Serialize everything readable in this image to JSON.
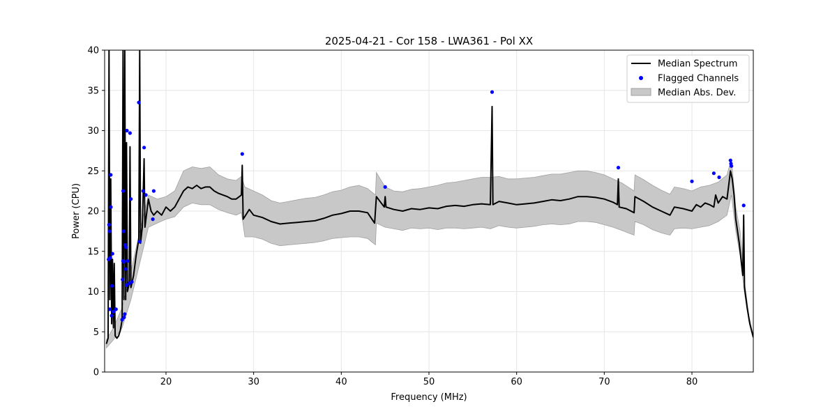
{
  "chart_data": {
    "type": "line",
    "title": "2025-04-21 - Cor 158 - LWA361 - Pol XX",
    "xlabel": "Frequency (MHz)",
    "ylabel": "Power (CPU)",
    "xlim": [
      13.0,
      87.0
    ],
    "ylim": [
      0,
      40
    ],
    "xticks": [
      20,
      30,
      40,
      50,
      60,
      70,
      80
    ],
    "yticks": [
      0,
      5,
      10,
      15,
      20,
      25,
      30,
      35,
      40
    ],
    "grid": true,
    "legend_position": "top-right",
    "legend": {
      "median": "Median Spectrum",
      "flagged": "Flagged Channels",
      "mad": "Median Abs. Dev."
    },
    "colors": {
      "median": "#000000",
      "flagged": "#0000ff",
      "mad_fill": "#c8c8c8",
      "mad_edge": "#a0a0a0"
    },
    "series": [
      {
        "name": "Median Spectrum",
        "points": [
          [
            13.2,
            3.5
          ],
          [
            13.4,
            4.2
          ],
          [
            13.5,
            40.0
          ],
          [
            13.6,
            9.0
          ],
          [
            13.7,
            24.0
          ],
          [
            13.8,
            6.0
          ],
          [
            13.9,
            14.0
          ],
          [
            14.0,
            5.5
          ],
          [
            14.1,
            13.5
          ],
          [
            14.2,
            4.5
          ],
          [
            14.4,
            4.2
          ],
          [
            14.6,
            4.5
          ],
          [
            14.8,
            5.2
          ],
          [
            15.0,
            6.5
          ],
          [
            15.1,
            40.0
          ],
          [
            15.2,
            9.0
          ],
          [
            15.3,
            40.0
          ],
          [
            15.4,
            9.0
          ],
          [
            15.5,
            28.5
          ],
          [
            15.6,
            10.0
          ],
          [
            15.8,
            11.0
          ],
          [
            15.9,
            28.0
          ],
          [
            16.0,
            10.5
          ],
          [
            16.3,
            12.0
          ],
          [
            16.6,
            14.5
          ],
          [
            16.9,
            16.5
          ],
          [
            17.0,
            40.0
          ],
          [
            17.1,
            16.0
          ],
          [
            17.3,
            18.0
          ],
          [
            17.5,
            26.5
          ],
          [
            17.6,
            18.0
          ],
          [
            18.0,
            21.5
          ],
          [
            18.3,
            20.0
          ],
          [
            18.6,
            19.5
          ],
          [
            19.0,
            20.0
          ],
          [
            19.5,
            19.5
          ],
          [
            20.0,
            20.5
          ],
          [
            20.5,
            20.0
          ],
          [
            21.0,
            20.5
          ],
          [
            21.5,
            21.5
          ],
          [
            22.0,
            22.5
          ],
          [
            22.5,
            23.0
          ],
          [
            23.0,
            22.8
          ],
          [
            23.5,
            23.2
          ],
          [
            24.0,
            22.8
          ],
          [
            24.5,
            23.0
          ],
          [
            25.0,
            23.0
          ],
          [
            25.5,
            22.5
          ],
          [
            26.0,
            22.2
          ],
          [
            26.5,
            22.0
          ],
          [
            27.0,
            21.8
          ],
          [
            27.5,
            21.5
          ],
          [
            28.0,
            21.5
          ],
          [
            28.6,
            22.0
          ],
          [
            28.7,
            25.7
          ],
          [
            28.8,
            19.0
          ],
          [
            29.5,
            20.2
          ],
          [
            30.0,
            19.5
          ],
          [
            31.0,
            19.2
          ],
          [
            32.0,
            18.7
          ],
          [
            33.0,
            18.4
          ],
          [
            34.0,
            18.5
          ],
          [
            35.0,
            18.6
          ],
          [
            36.0,
            18.7
          ],
          [
            37.0,
            18.8
          ],
          [
            38.0,
            19.1
          ],
          [
            39.0,
            19.5
          ],
          [
            40.0,
            19.7
          ],
          [
            41.0,
            20.0
          ],
          [
            42.0,
            20.0
          ],
          [
            43.0,
            19.8
          ],
          [
            43.8,
            18.5
          ],
          [
            44.0,
            21.8
          ],
          [
            44.9,
            20.5
          ],
          [
            45.0,
            21.8
          ],
          [
            45.1,
            20.5
          ],
          [
            46.0,
            20.2
          ],
          [
            47.0,
            20.0
          ],
          [
            48.0,
            20.3
          ],
          [
            49.0,
            20.2
          ],
          [
            50.0,
            20.4
          ],
          [
            51.0,
            20.3
          ],
          [
            52.0,
            20.6
          ],
          [
            53.0,
            20.7
          ],
          [
            54.0,
            20.6
          ],
          [
            55.0,
            20.8
          ],
          [
            56.0,
            20.9
          ],
          [
            57.0,
            20.8
          ],
          [
            57.2,
            33.0
          ],
          [
            57.3,
            20.8
          ],
          [
            58.0,
            21.2
          ],
          [
            59.0,
            21.0
          ],
          [
            60.0,
            20.8
          ],
          [
            61.0,
            20.9
          ],
          [
            62.0,
            21.0
          ],
          [
            63.0,
            21.2
          ],
          [
            64.0,
            21.4
          ],
          [
            65.0,
            21.3
          ],
          [
            66.0,
            21.5
          ],
          [
            67.0,
            21.8
          ],
          [
            68.0,
            21.8
          ],
          [
            69.0,
            21.7
          ],
          [
            70.0,
            21.5
          ],
          [
            71.0,
            21.1
          ],
          [
            71.5,
            20.8
          ],
          [
            71.6,
            24.0
          ],
          [
            71.7,
            20.5
          ],
          [
            72.5,
            20.3
          ],
          [
            73.4,
            19.8
          ],
          [
            73.5,
            21.8
          ],
          [
            74.5,
            21.2
          ],
          [
            75.5,
            20.5
          ],
          [
            76.5,
            20.0
          ],
          [
            77.5,
            19.5
          ],
          [
            78.0,
            20.5
          ],
          [
            79.0,
            20.3
          ],
          [
            80.0,
            20.0
          ],
          [
            80.5,
            20.8
          ],
          [
            81.0,
            20.5
          ],
          [
            81.5,
            21.0
          ],
          [
            82.0,
            20.8
          ],
          [
            82.5,
            20.5
          ],
          [
            82.7,
            22.0
          ],
          [
            83.0,
            21.0
          ],
          [
            83.5,
            21.8
          ],
          [
            84.0,
            21.5
          ],
          [
            84.4,
            25.0
          ],
          [
            84.6,
            24.0
          ],
          [
            84.8,
            22.0
          ],
          [
            85.0,
            19.0
          ],
          [
            85.4,
            16.0
          ],
          [
            85.8,
            12.0
          ],
          [
            85.9,
            19.5
          ],
          [
            86.0,
            10.5
          ],
          [
            86.3,
            8.0
          ],
          [
            86.6,
            6.0
          ],
          [
            87.0,
            4.3
          ]
        ]
      },
      {
        "name": "Median Abs. Dev.",
        "band": [
          [
            13.2,
            3.0,
            4.0
          ],
          [
            14.0,
            4.0,
            5.5
          ],
          [
            15.0,
            5.5,
            8.0
          ],
          [
            16.0,
            9.0,
            12.5
          ],
          [
            17.0,
            13.5,
            17.5
          ],
          [
            18.0,
            18.0,
            22.0
          ],
          [
            19.0,
            18.5,
            21.5
          ],
          [
            20.0,
            19.0,
            21.8
          ],
          [
            21.0,
            19.3,
            22.5
          ],
          [
            22.0,
            20.5,
            25.0
          ],
          [
            23.0,
            21.0,
            25.5
          ],
          [
            24.0,
            20.8,
            25.3
          ],
          [
            25.0,
            20.8,
            25.5
          ],
          [
            26.0,
            20.2,
            24.5
          ],
          [
            27.0,
            19.8,
            24.0
          ],
          [
            28.0,
            19.5,
            23.8
          ],
          [
            28.6,
            19.8,
            24.3
          ],
          [
            29.0,
            16.8,
            23.0
          ],
          [
            30.0,
            16.8,
            22.5
          ],
          [
            31.0,
            16.5,
            22.0
          ],
          [
            32.0,
            16.0,
            21.3
          ],
          [
            33.0,
            15.7,
            21.0
          ],
          [
            34.0,
            15.8,
            21.2
          ],
          [
            35.0,
            15.9,
            21.4
          ],
          [
            36.0,
            16.0,
            21.6
          ],
          [
            37.0,
            16.1,
            21.7
          ],
          [
            38.0,
            16.3,
            22.0
          ],
          [
            39.0,
            16.6,
            22.4
          ],
          [
            40.0,
            16.7,
            22.6
          ],
          [
            41.0,
            16.8,
            23.0
          ],
          [
            42.0,
            16.8,
            23.2
          ],
          [
            43.0,
            16.6,
            22.8
          ],
          [
            43.9,
            15.8,
            22.0
          ],
          [
            44.0,
            18.5,
            24.8
          ],
          [
            45.0,
            18.0,
            23.0
          ],
          [
            46.0,
            17.8,
            22.5
          ],
          [
            47.0,
            17.6,
            22.4
          ],
          [
            48.0,
            17.9,
            22.7
          ],
          [
            49.0,
            17.8,
            22.8
          ],
          [
            50.0,
            17.9,
            23.0
          ],
          [
            51.0,
            17.7,
            23.2
          ],
          [
            52.0,
            17.9,
            23.5
          ],
          [
            53.0,
            17.9,
            23.6
          ],
          [
            54.0,
            17.8,
            23.8
          ],
          [
            55.0,
            17.9,
            24.0
          ],
          [
            56.0,
            18.0,
            24.2
          ],
          [
            57.0,
            17.8,
            24.2
          ],
          [
            58.0,
            18.2,
            24.3
          ],
          [
            59.0,
            18.0,
            24.0
          ],
          [
            60.0,
            17.9,
            24.0
          ],
          [
            61.0,
            18.0,
            24.1
          ],
          [
            62.0,
            18.1,
            24.2
          ],
          [
            63.0,
            18.3,
            24.4
          ],
          [
            64.0,
            18.4,
            24.6
          ],
          [
            65.0,
            18.3,
            24.6
          ],
          [
            66.0,
            18.4,
            24.8
          ],
          [
            67.0,
            18.7,
            25.0
          ],
          [
            68.0,
            18.7,
            25.0
          ],
          [
            69.0,
            18.6,
            24.8
          ],
          [
            70.0,
            18.3,
            24.5
          ],
          [
            71.0,
            18.0,
            24.0
          ],
          [
            72.0,
            17.6,
            23.5
          ],
          [
            73.4,
            17.0,
            22.5
          ],
          [
            73.5,
            18.7,
            24.5
          ],
          [
            74.5,
            18.3,
            23.9
          ],
          [
            75.5,
            17.7,
            23.2
          ],
          [
            76.5,
            17.3,
            22.6
          ],
          [
            77.5,
            17.0,
            22.1
          ],
          [
            78.0,
            17.8,
            23.0
          ],
          [
            79.0,
            17.9,
            22.8
          ],
          [
            80.0,
            17.8,
            22.5
          ],
          [
            81.0,
            18.0,
            23.0
          ],
          [
            82.0,
            18.2,
            23.2
          ],
          [
            83.0,
            18.7,
            23.6
          ],
          [
            84.0,
            19.5,
            24.5
          ],
          [
            84.5,
            22.0,
            26.5
          ],
          [
            85.0,
            17.5,
            20.5
          ],
          [
            85.5,
            14.5,
            17.5
          ],
          [
            86.0,
            9.8,
            11.2
          ],
          [
            86.5,
            6.3,
            7.0
          ],
          [
            87.0,
            4.2,
            4.5
          ]
        ]
      },
      {
        "name": "Flagged Channels",
        "points": [
          [
            13.45,
            14.0
          ],
          [
            13.5,
            18.3
          ],
          [
            13.55,
            17.5
          ],
          [
            13.6,
            7.8
          ],
          [
            13.65,
            14.2
          ],
          [
            13.7,
            24.5
          ],
          [
            13.72,
            20.5
          ],
          [
            13.8,
            7.0
          ],
          [
            13.85,
            10.7
          ],
          [
            13.9,
            14.7
          ],
          [
            14.0,
            7.5
          ],
          [
            14.3,
            7.8
          ],
          [
            15.0,
            6.5
          ],
          [
            15.05,
            11.5
          ],
          [
            15.1,
            13.8
          ],
          [
            15.12,
            22.5
          ],
          [
            15.15,
            17.5
          ],
          [
            15.2,
            13.7
          ],
          [
            15.22,
            6.8
          ],
          [
            15.3,
            7.2
          ],
          [
            15.35,
            15.8
          ],
          [
            15.4,
            12.8
          ],
          [
            15.45,
            15.5
          ],
          [
            15.5,
            10.8
          ],
          [
            15.55,
            30.0
          ],
          [
            15.6,
            13.8
          ],
          [
            15.8,
            11.0
          ],
          [
            15.9,
            29.7
          ],
          [
            16.0,
            21.5
          ],
          [
            16.1,
            11.2
          ],
          [
            16.9,
            33.5
          ],
          [
            17.0,
            16.2
          ],
          [
            17.4,
            22.5
          ],
          [
            17.5,
            27.9
          ],
          [
            17.7,
            22.0
          ],
          [
            18.5,
            19.0
          ],
          [
            18.6,
            22.5
          ],
          [
            28.7,
            27.1
          ],
          [
            45.0,
            23.0
          ],
          [
            57.2,
            34.8
          ],
          [
            71.6,
            25.4
          ],
          [
            80.0,
            23.7
          ],
          [
            82.5,
            24.7
          ],
          [
            83.1,
            24.2
          ],
          [
            84.4,
            26.3
          ],
          [
            84.45,
            25.9
          ],
          [
            84.5,
            25.6
          ],
          [
            85.9,
            20.7
          ]
        ]
      }
    ]
  }
}
